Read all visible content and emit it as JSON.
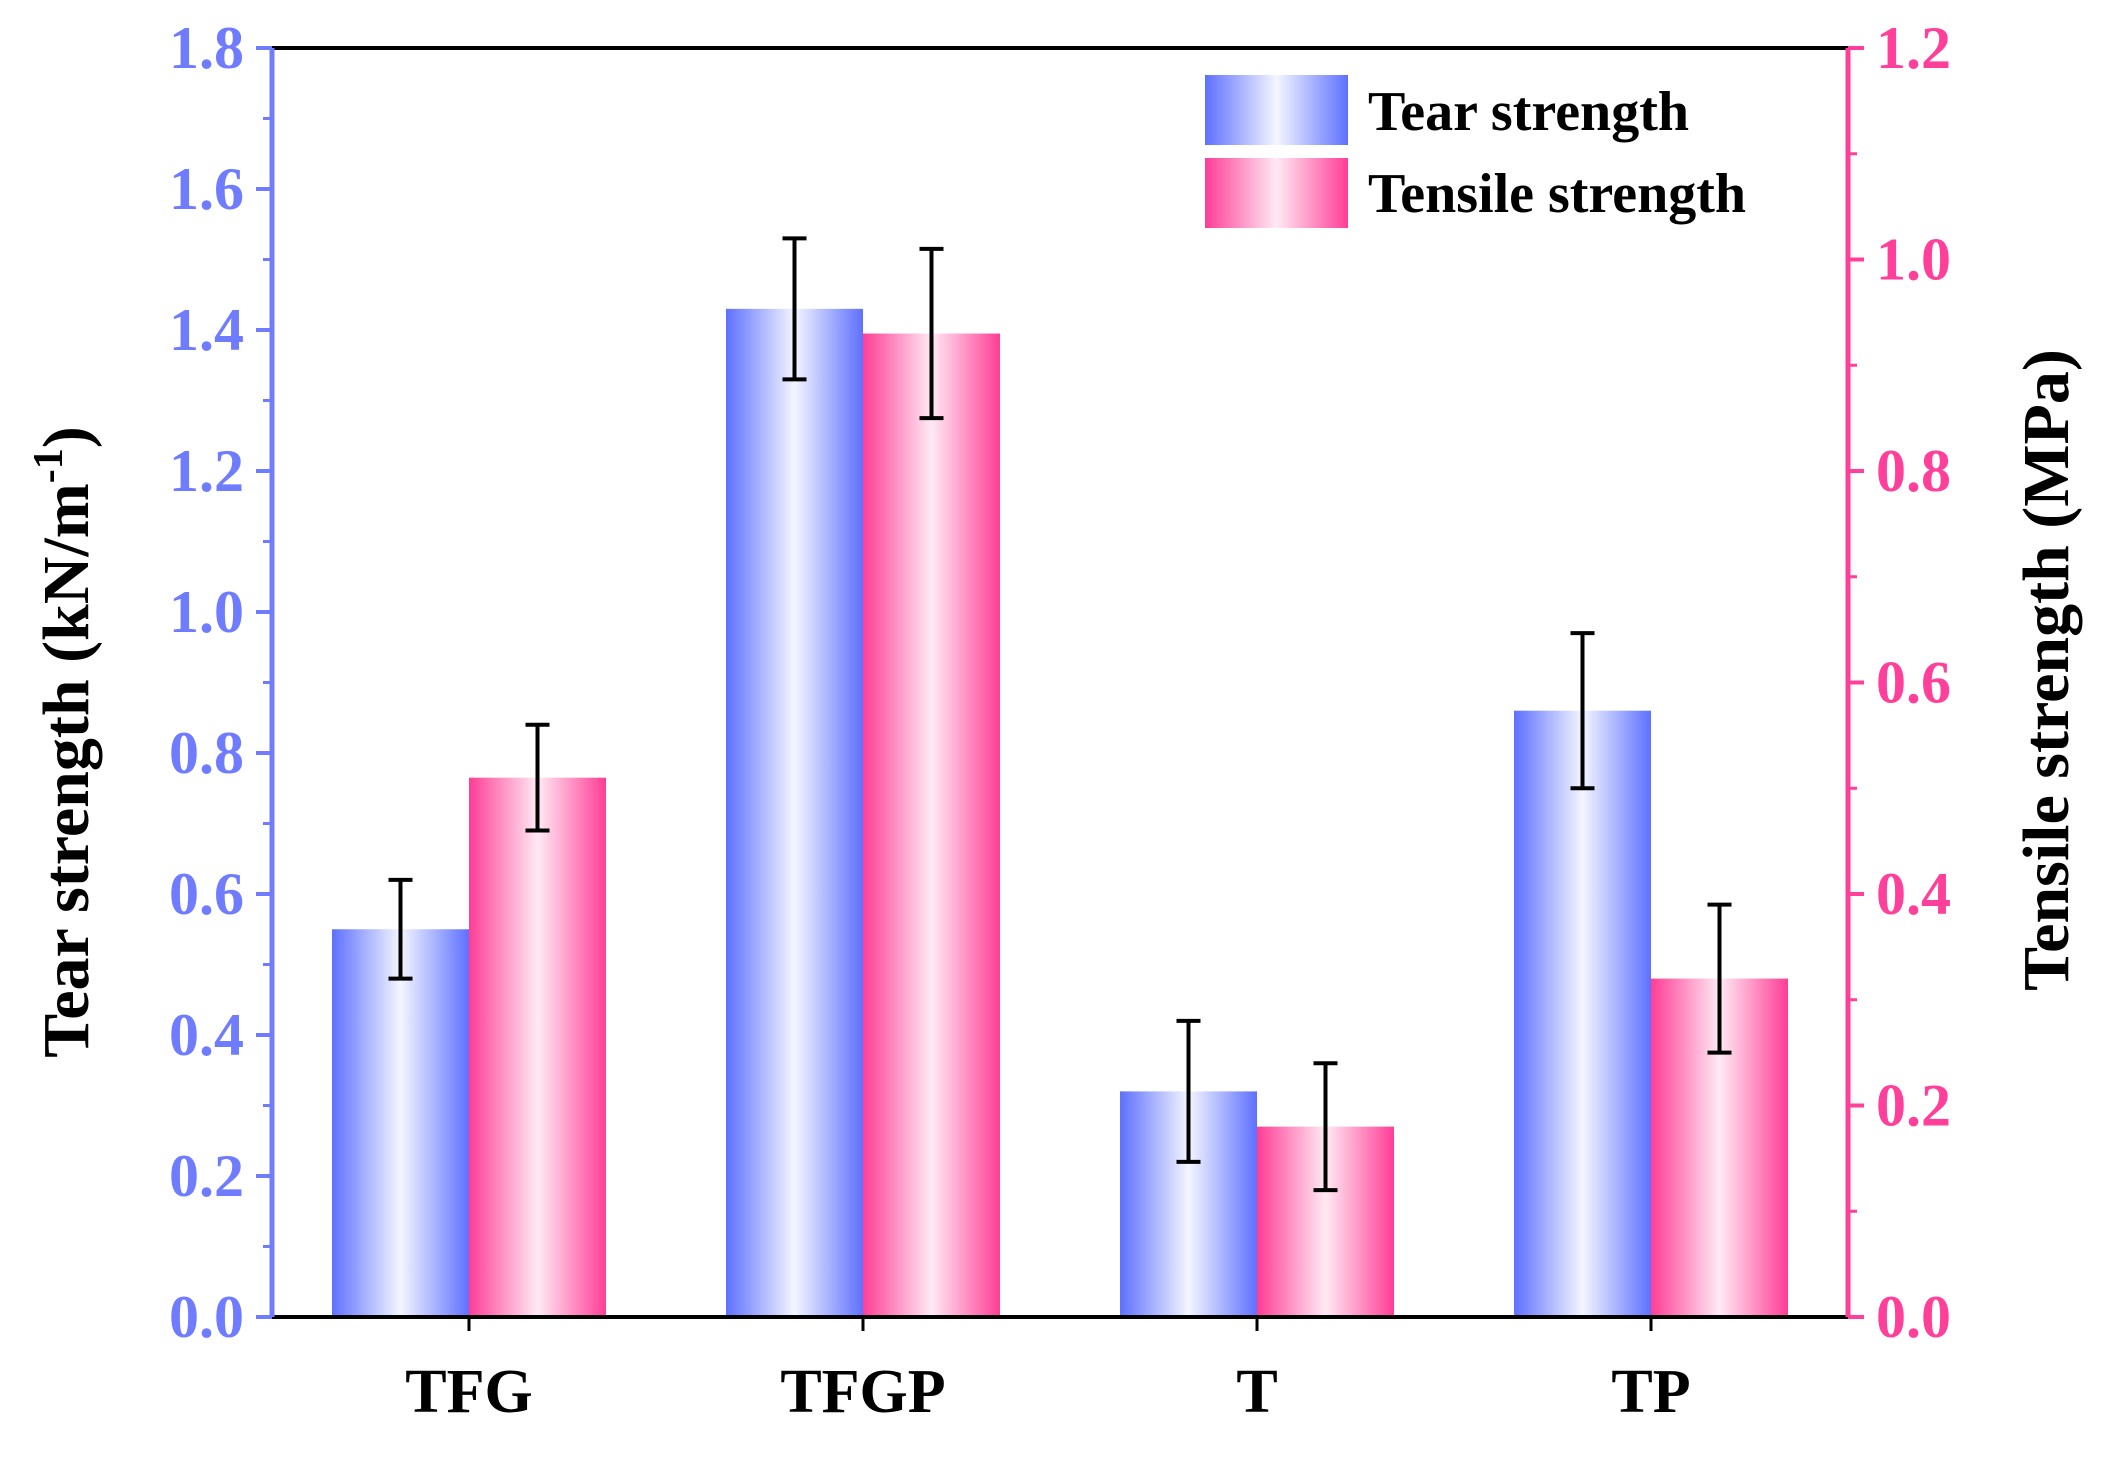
{
  "chart_data": {
    "type": "bar",
    "categories": [
      "TFG",
      "TFGP",
      "T",
      "TP"
    ],
    "series": [
      {
        "name": "Tear strength",
        "axis": "left",
        "values": [
          0.55,
          1.43,
          0.32,
          0.86
        ],
        "errors": [
          0.07,
          0.1,
          0.1,
          0.11
        ]
      },
      {
        "name": "Tensile strength",
        "axis": "right",
        "values": [
          0.51,
          0.93,
          0.18,
          0.32
        ],
        "errors": [
          0.05,
          0.08,
          0.06,
          0.07
        ]
      }
    ],
    "y_left": {
      "label": "Tear strength (kN/m",
      "label_sup": "-1",
      "label_end": ")",
      "range": [
        0,
        1.8
      ],
      "ticks": [
        "0.0",
        "0.2",
        "0.4",
        "0.6",
        "0.8",
        "1.0",
        "1.2",
        "1.4",
        "1.6",
        "1.8"
      ],
      "color": "#6f7cff"
    },
    "y_right": {
      "label": "Tensile strength (MPa)",
      "range": [
        0,
        1.2
      ],
      "ticks": [
        "0.0",
        "0.2",
        "0.4",
        "0.6",
        "0.8",
        "1.0",
        "1.2"
      ],
      "color": "#ff3f9a"
    },
    "legend": {
      "position": "top-right",
      "items": [
        "Tear strength",
        "Tensile strength"
      ]
    },
    "colors": {
      "tear_edge": "#5e70ff",
      "tear_center": "#f4f6ff",
      "tensile_edge": "#ff3d96",
      "tensile_center": "#ffeaf4",
      "axis": "#000000"
    },
    "grid": false
  }
}
